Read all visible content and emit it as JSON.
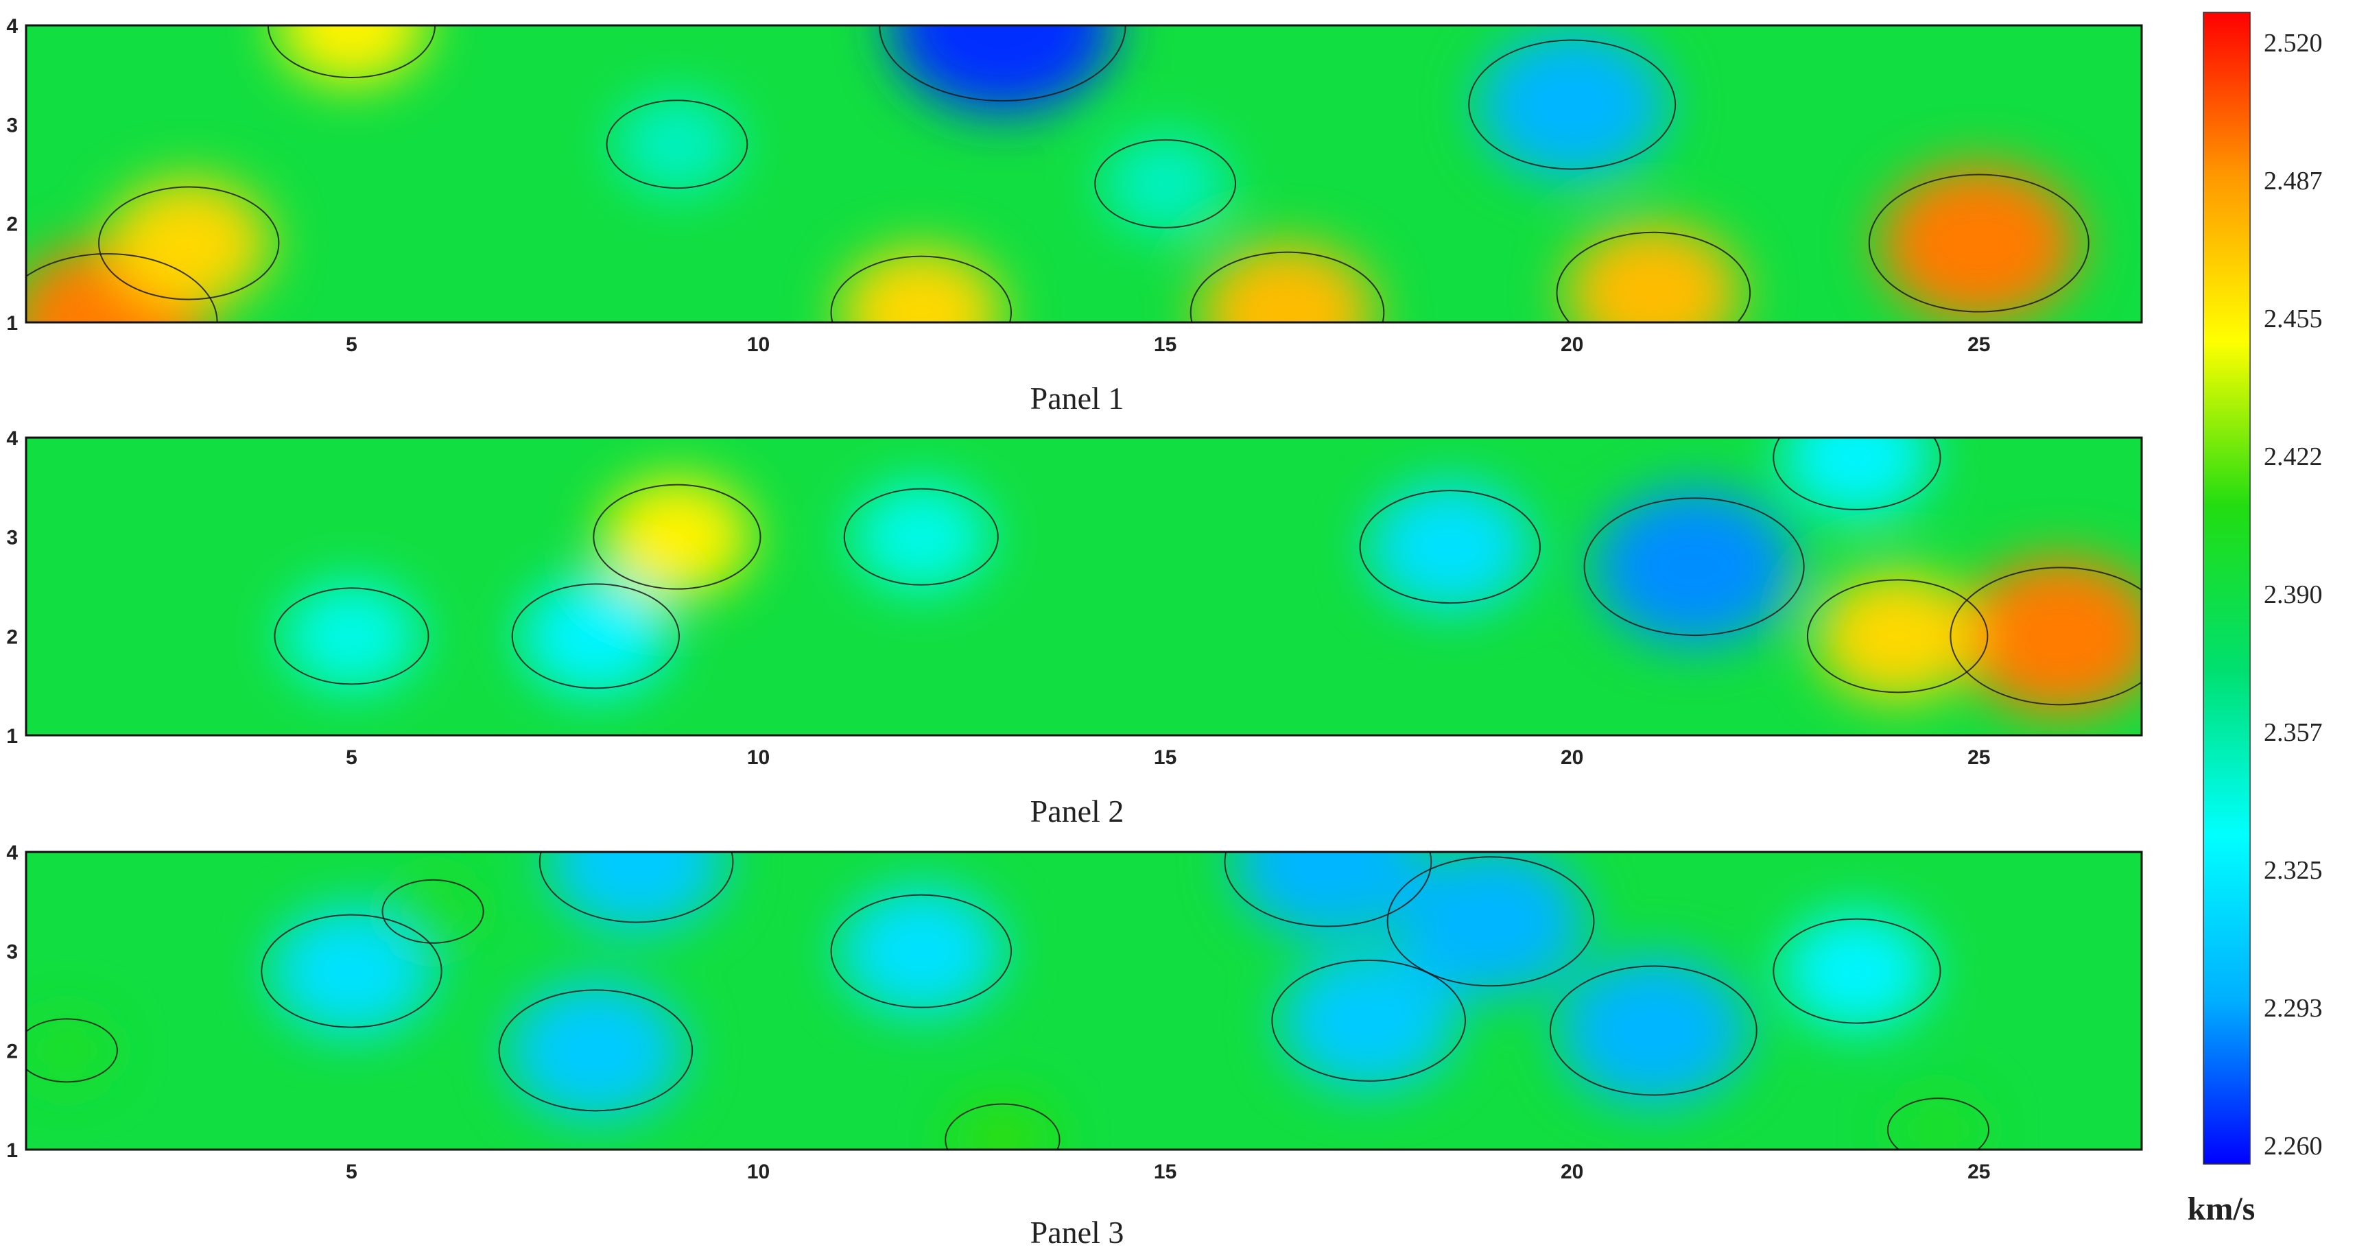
{
  "chart_data": {
    "type": "heatmap",
    "x_range": [
      1,
      27
    ],
    "y_range": [
      1,
      4
    ],
    "x_ticks": [
      5,
      10,
      15,
      20,
      25
    ],
    "y_ticks": [
      1,
      2,
      3,
      4
    ],
    "colorbar": {
      "unit": "km/s",
      "min": 2.26,
      "max": 2.52,
      "ticks": [
        "2.520",
        "2.487",
        "2.455",
        "2.422",
        "2.390",
        "2.357",
        "2.325",
        "2.293",
        "2.260"
      ],
      "colors": [
        "#0000ff",
        "#00b0ff",
        "#00ffff",
        "#00e070",
        "#22dd11",
        "#ffff00",
        "#ff9900",
        "#ff0000"
      ]
    },
    "panels": [
      {
        "title": "Panel 1",
        "features": [
          {
            "x": 2,
            "y": 1,
            "value": 2.49
          },
          {
            "x": 3,
            "y": 1.8,
            "value": 2.46
          },
          {
            "x": 13,
            "y": 4,
            "value": 2.27
          },
          {
            "x": 20,
            "y": 3.2,
            "value": 2.3
          },
          {
            "x": 25,
            "y": 1.8,
            "value": 2.49
          },
          {
            "x": 21,
            "y": 1.3,
            "value": 2.47
          },
          {
            "x": 16.5,
            "y": 1.1,
            "value": 2.47
          },
          {
            "x": 12,
            "y": 1.1,
            "value": 2.46
          },
          {
            "x": 9,
            "y": 2.8,
            "value": 2.35
          },
          {
            "x": 15,
            "y": 2.4,
            "value": 2.35
          },
          {
            "x": 5,
            "y": 4,
            "value": 2.45
          }
        ]
      },
      {
        "title": "Panel 2",
        "features": [
          {
            "x": 21.5,
            "y": 2.7,
            "value": 2.29
          },
          {
            "x": 18.5,
            "y": 2.9,
            "value": 2.32
          },
          {
            "x": 26,
            "y": 2,
            "value": 2.49
          },
          {
            "x": 24,
            "y": 2,
            "value": 2.46
          },
          {
            "x": 9,
            "y": 3,
            "value": 2.45
          },
          {
            "x": 5,
            "y": 2,
            "value": 2.34
          },
          {
            "x": 12,
            "y": 3,
            "value": 2.34
          },
          {
            "x": 23.5,
            "y": 3.8,
            "value": 2.33
          },
          {
            "x": 8,
            "y": 2,
            "value": 2.33
          }
        ]
      },
      {
        "title": "Panel 3",
        "features": [
          {
            "x": 8,
            "y": 2,
            "value": 2.31
          },
          {
            "x": 17.5,
            "y": 2.3,
            "value": 2.31
          },
          {
            "x": 19,
            "y": 3.3,
            "value": 2.3
          },
          {
            "x": 21,
            "y": 2.2,
            "value": 2.3
          },
          {
            "x": 17,
            "y": 3.9,
            "value": 2.3
          },
          {
            "x": 8.5,
            "y": 3.9,
            "value": 2.31
          },
          {
            "x": 23.5,
            "y": 2.8,
            "value": 2.33
          },
          {
            "x": 12,
            "y": 3,
            "value": 2.32
          },
          {
            "x": 5,
            "y": 2.8,
            "value": 2.32
          },
          {
            "x": 13,
            "y": 1.1,
            "value": 2.41
          },
          {
            "x": 1.5,
            "y": 2,
            "value": 2.4
          },
          {
            "x": 24.5,
            "y": 1.2,
            "value": 2.4
          },
          {
            "x": 6,
            "y": 3.4,
            "value": 2.4
          }
        ]
      }
    ]
  }
}
